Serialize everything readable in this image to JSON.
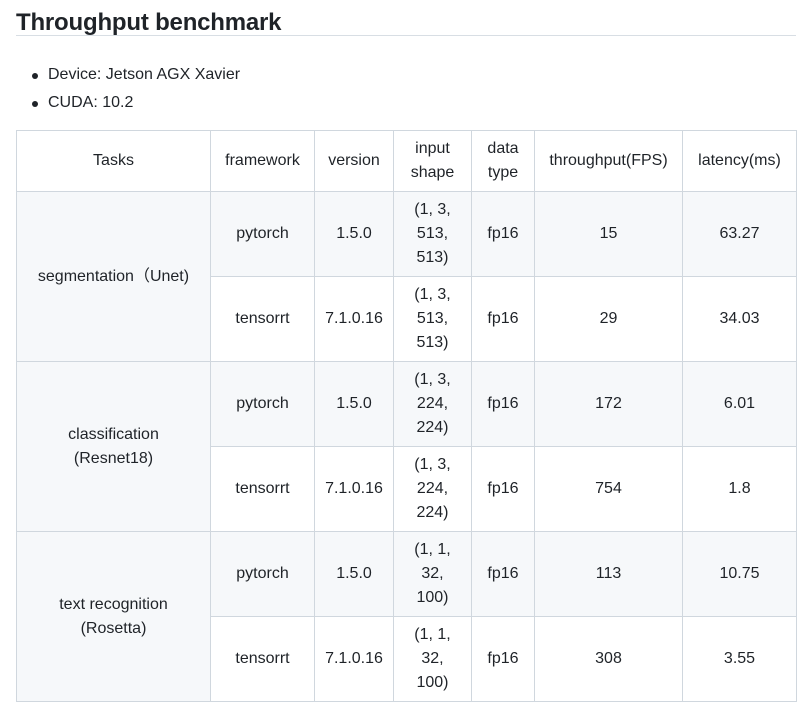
{
  "heading": "Throughput benchmark",
  "specs": [
    "Device: Jetson AGX Xavier",
    "CUDA: 10.2"
  ],
  "table": {
    "headers": {
      "tasks": "Tasks",
      "framework": "framework",
      "version": "version",
      "input_shape_1": "input",
      "input_shape_2": "shape",
      "data_type_1": "data",
      "data_type_2": "type",
      "throughput": "throughput(FPS)",
      "latency": "latency(ms)"
    },
    "groups": [
      {
        "task_line1": "segmentation（Unet)",
        "task_line2": "",
        "rows": [
          {
            "framework": "pytorch",
            "version": "1.5.0",
            "shape": [
              "(1, 3,",
              "513,",
              "513)"
            ],
            "dtype": "fp16",
            "throughput": "15",
            "latency": "63.27"
          },
          {
            "framework": "tensorrt",
            "version": "7.1.0.16",
            "shape": [
              "(1, 3,",
              "513,",
              "513)"
            ],
            "dtype": "fp16",
            "throughput": "29",
            "latency": "34.03"
          }
        ]
      },
      {
        "task_line1": "classification",
        "task_line2": "(Resnet18)",
        "rows": [
          {
            "framework": "pytorch",
            "version": "1.5.0",
            "shape": [
              "(1, 3,",
              "224,",
              "224)"
            ],
            "dtype": "fp16",
            "throughput": "172",
            "latency": "6.01"
          },
          {
            "framework": "tensorrt",
            "version": "7.1.0.16",
            "shape": [
              "(1, 3,",
              "224,",
              "224)"
            ],
            "dtype": "fp16",
            "throughput": "754",
            "latency": "1.8"
          }
        ]
      },
      {
        "task_line1": "text recognition",
        "task_line2": "(Rosetta)",
        "rows": [
          {
            "framework": "pytorch",
            "version": "1.5.0",
            "shape": [
              "(1, 1,",
              "32,",
              "100)"
            ],
            "dtype": "fp16",
            "throughput": "113",
            "latency": "10.75"
          },
          {
            "framework": "tensorrt",
            "version": "7.1.0.16",
            "shape": [
              "(1, 1,",
              "32,",
              "100)"
            ],
            "dtype": "fp16",
            "throughput": "308",
            "latency": "3.55"
          }
        ]
      }
    ]
  }
}
